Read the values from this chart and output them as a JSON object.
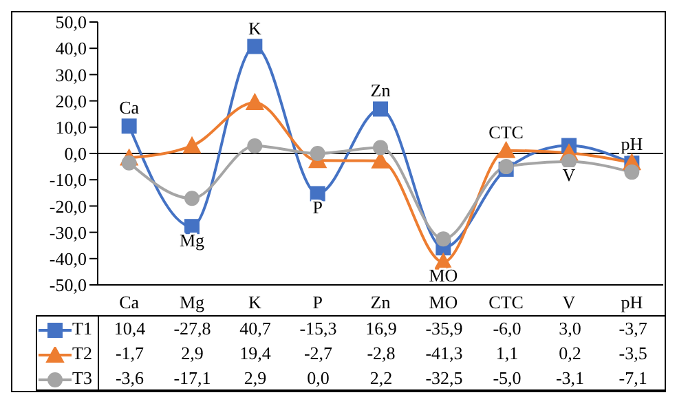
{
  "chart_data": {
    "type": "line",
    "categories": [
      "Ca",
      "Mg",
      "K",
      "P",
      "Zn",
      "MO",
      "CTC",
      "V",
      "pH"
    ],
    "series": [
      {
        "name": "T1",
        "color": "#4472c4",
        "marker": "square",
        "values": [
          10.4,
          -27.8,
          40.7,
          -15.3,
          16.9,
          -35.9,
          -6.0,
          3.0,
          -3.7
        ],
        "value_labels": [
          "10,4",
          "-27,8",
          "40,7",
          "-15,3",
          "16,9",
          "-35,9",
          "-6,0",
          "3,0",
          "-3,7"
        ]
      },
      {
        "name": "T2",
        "color": "#ed7d31",
        "marker": "triangle",
        "values": [
          -1.7,
          2.9,
          19.4,
          -2.7,
          -2.8,
          -41.3,
          1.1,
          0.2,
          -3.5
        ],
        "value_labels": [
          "-1,7",
          "2,9",
          "19,4",
          "-2,7",
          "-2,8",
          "-41,3",
          "1,1",
          "0,2",
          "-3,5"
        ]
      },
      {
        "name": "T3",
        "color": "#a5a5a5",
        "marker": "circle",
        "values": [
          -3.6,
          -17.1,
          2.9,
          0.0,
          2.2,
          -32.5,
          -5.0,
          -3.1,
          -7.1
        ],
        "value_labels": [
          "-3,6",
          "-17,1",
          "2,9",
          "0,0",
          "2,2",
          "-32,5",
          "-5,0",
          "-3,1",
          "-7,1"
        ]
      }
    ],
    "ylim": [
      -50,
      50
    ],
    "yticks": [
      {
        "value": -50,
        "label": "-50,0"
      },
      {
        "value": -40,
        "label": "-40,0"
      },
      {
        "value": -30,
        "label": "-30,0"
      },
      {
        "value": -20,
        "label": "-20,0"
      },
      {
        "value": -10,
        "label": "-10,0"
      },
      {
        "value": 0,
        "label": "0,0"
      },
      {
        "value": 10,
        "label": "10,0"
      },
      {
        "value": 20,
        "label": "20,0"
      },
      {
        "value": 30,
        "label": "30,0"
      },
      {
        "value": 40,
        "label": "40,0"
      },
      {
        "value": 50,
        "label": "50,0"
      }
    ],
    "legend": "bottom",
    "ref_lines": [
      {
        "axis": "y",
        "value": 0,
        "color": "#000000"
      }
    ],
    "annotations": [
      {
        "text": "Ca",
        "x": "Ca",
        "y": 10.4
      },
      {
        "text": "Mg",
        "x": "Mg",
        "y": -27.8
      },
      {
        "text": "K",
        "x": "K",
        "y": 40.7
      },
      {
        "text": "P",
        "x": "P",
        "y": -15.3
      },
      {
        "text": "Zn",
        "x": "Zn",
        "y": 16.9
      },
      {
        "text": "MO",
        "x": "MO",
        "y": -41.3
      },
      {
        "text": "CTC",
        "x": "CTC",
        "y": 1.1
      },
      {
        "text": "V",
        "x": "V",
        "y": -3.1
      },
      {
        "text": "pH",
        "x": "pH",
        "y": -3.5
      }
    ]
  }
}
